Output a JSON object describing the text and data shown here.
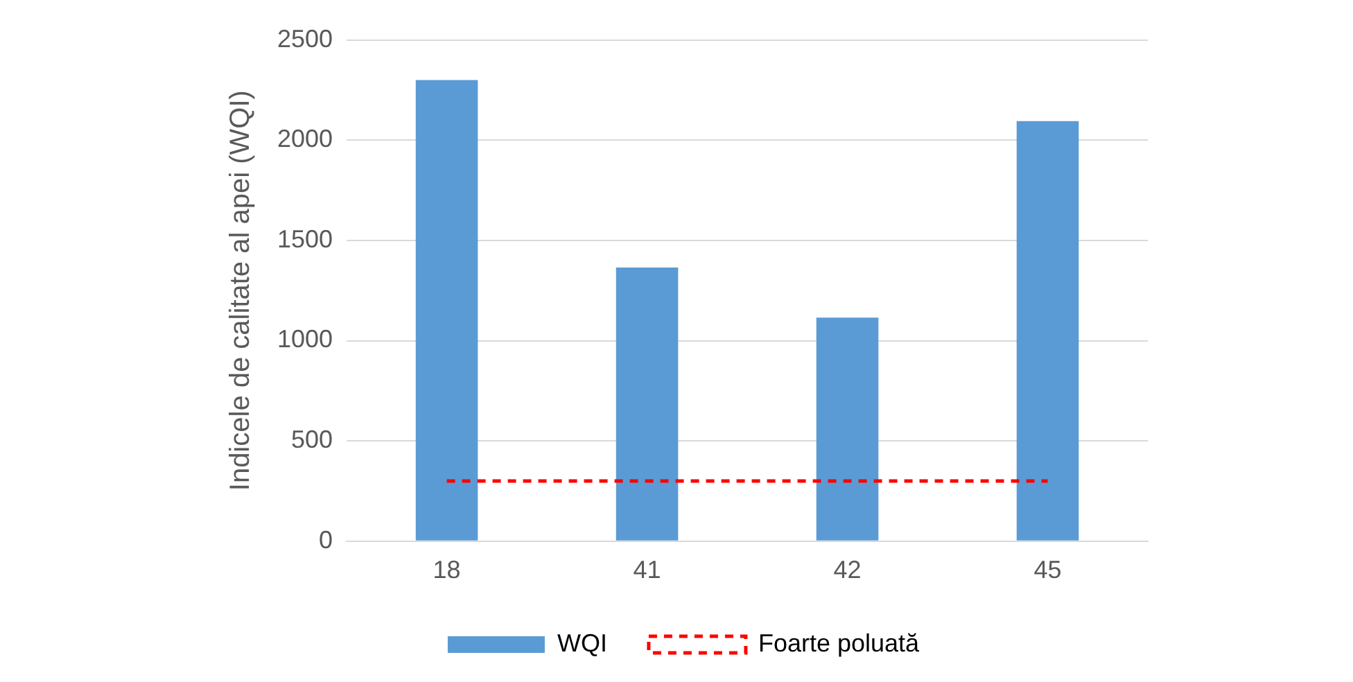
{
  "chart_data": {
    "type": "bar",
    "ylabel": "Indicele de calitate al apei (WQI)",
    "categories": [
      "18",
      "41",
      "42",
      "45"
    ],
    "series": [
      {
        "name": "WQI",
        "color": "#5b9bd5",
        "values": [
          2300,
          1365,
          1115,
          2095
        ]
      },
      {
        "name": "Foarte poluată",
        "type": "line",
        "color": "#ff0000",
        "line_style": "dashed",
        "marker": "none",
        "values": [
          300,
          300,
          300,
          300
        ]
      }
    ],
    "ylim": [
      0,
      2500
    ],
    "yticks": [
      0,
      500,
      1000,
      1500,
      2000,
      2500
    ],
    "grid": "y",
    "legend": "bottom"
  }
}
